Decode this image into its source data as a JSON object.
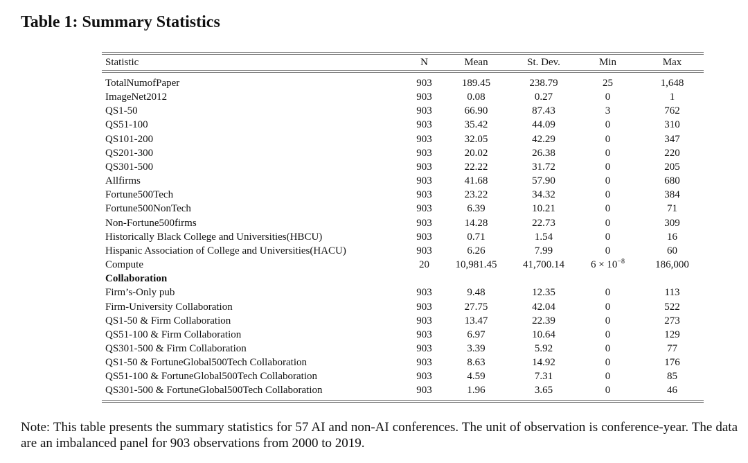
{
  "title": "Table 1: Summary Statistics",
  "table": {
    "headers": [
      "Statistic",
      "N",
      "Mean",
      "St. Dev.",
      "Min",
      "Max"
    ],
    "rows": [
      [
        "TotalNumofPaper",
        "903",
        "189.45",
        "238.79",
        "25",
        "1,648"
      ],
      [
        "ImageNet2012",
        "903",
        "0.08",
        "0.27",
        "0",
        "1"
      ],
      [
        "QS1-50",
        "903",
        "66.90",
        "87.43",
        "3",
        "762"
      ],
      [
        "QS51-100",
        "903",
        "35.42",
        "44.09",
        "0",
        "310"
      ],
      [
        "QS101-200",
        "903",
        "32.05",
        "42.29",
        "0",
        "347"
      ],
      [
        "QS201-300",
        "903",
        "20.02",
        "26.38",
        "0",
        "220"
      ],
      [
        "QS301-500",
        "903",
        "22.22",
        "31.72",
        "0",
        "205"
      ],
      [
        "Allfirms",
        "903",
        "41.68",
        "57.90",
        "0",
        "680"
      ],
      [
        "Fortune500Tech",
        "903",
        "23.22",
        "34.32",
        "0",
        "384"
      ],
      [
        "Fortune500NonTech",
        "903",
        "6.39",
        "10.21",
        "0",
        "71"
      ],
      [
        "Non-Fortune500firms",
        "903",
        "14.28",
        "22.73",
        "0",
        "309"
      ],
      [
        "Historically Black College and Universities(HBCU)",
        "903",
        "0.71",
        "1.54",
        "0",
        "16"
      ],
      [
        "Hispanic Association of College and Universities(HACU)",
        "903",
        "6.26",
        "7.99",
        "0",
        "60"
      ],
      [
        "Compute",
        "20",
        "10,981.45",
        "41,700.14",
        "6 × 10",
        "186,000"
      ]
    ],
    "compute_min_exponent": "−8",
    "section_label": "Collaboration",
    "collab_rows": [
      [
        "Firm’s-Only pub",
        "903",
        "9.48",
        "12.35",
        "0",
        "113"
      ],
      [
        "Firm-University Collaboration",
        "903",
        "27.75",
        "42.04",
        "0",
        "522"
      ],
      [
        "QS1-50 & Firm Collaboration",
        "903",
        "13.47",
        "22.39",
        "0",
        "273"
      ],
      [
        "QS51-100 & Firm Collaboration",
        "903",
        "6.97",
        "10.64",
        "0",
        "129"
      ],
      [
        "QS301-500 & Firm Collaboration",
        "903",
        "3.39",
        "5.92",
        "0",
        "77"
      ],
      [
        "QS1-50 & FortuneGlobal500Tech Collaboration",
        "903",
        "8.63",
        "14.92",
        "0",
        "176"
      ],
      [
        "QS51-100 & FortuneGlobal500Tech Collaboration",
        "903",
        "4.59",
        "7.31",
        "0",
        "85"
      ],
      [
        "QS301-500 & FortuneGlobal500Tech Collaboration",
        "903",
        "1.96",
        "3.65",
        "0",
        "46"
      ]
    ]
  },
  "note": "Note: This table presents the summary statistics for 57 AI and non-AI conferences. The unit of observation is conference-year. The data are an imbalanced panel for 903 observations from 2000 to 2019."
}
